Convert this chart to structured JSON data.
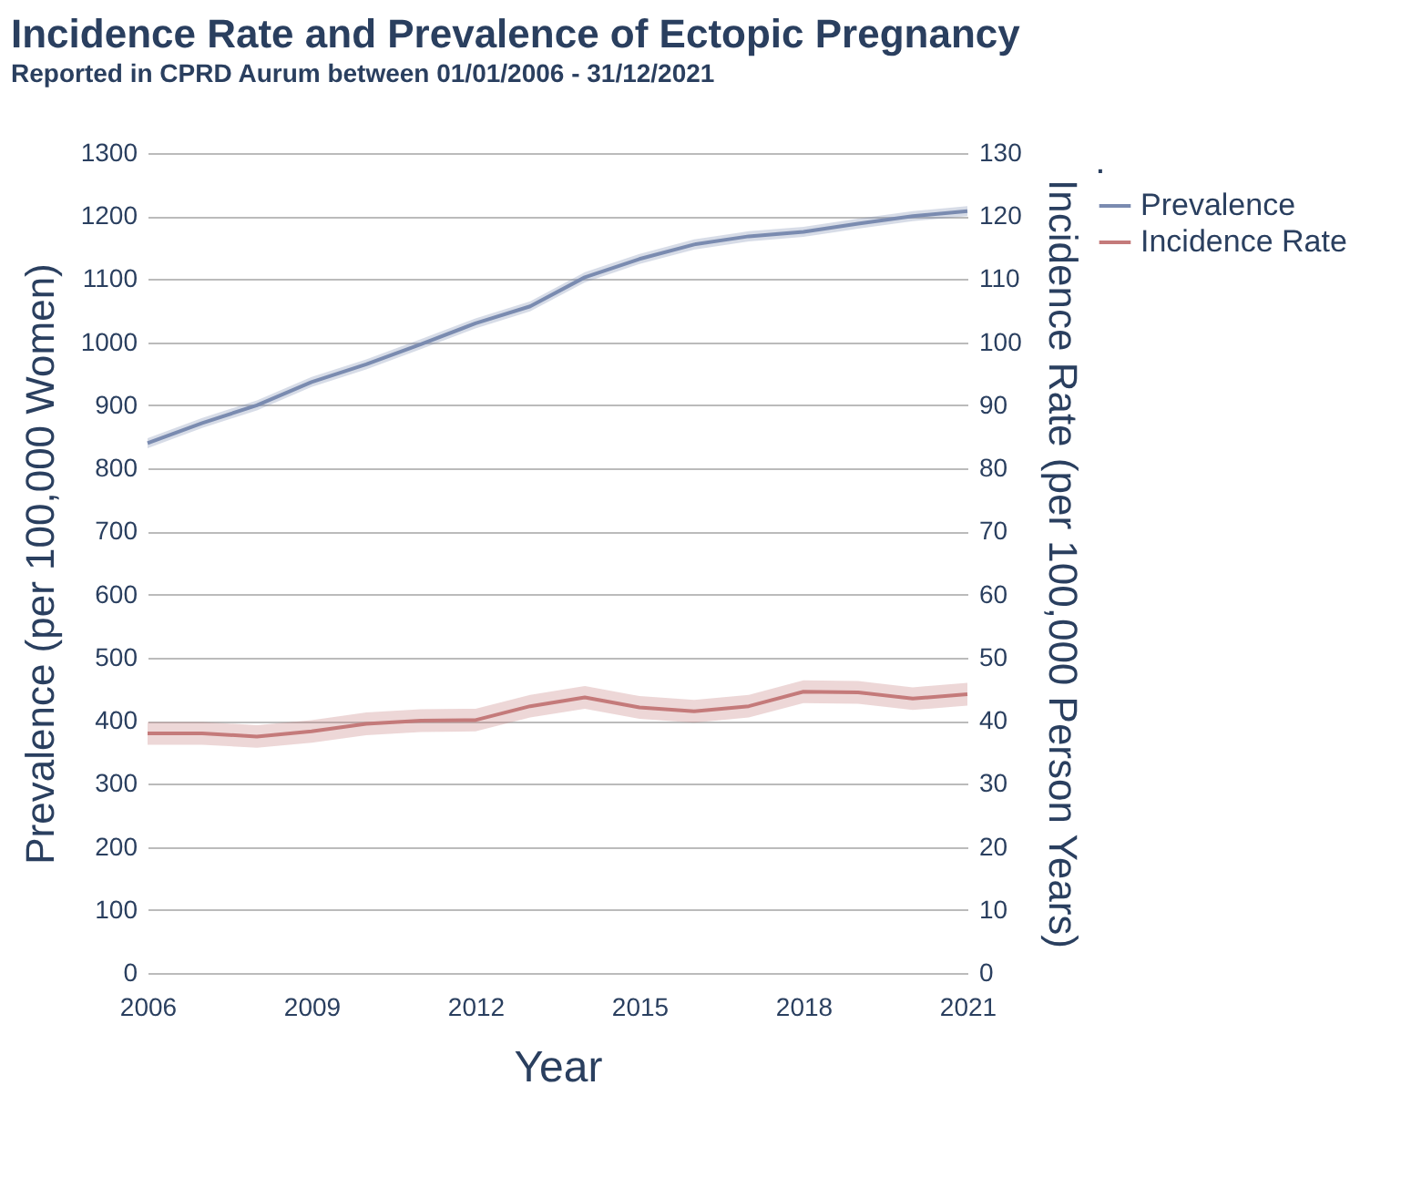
{
  "chart_data": {
    "type": "line",
    "title": "Incidence Rate and Prevalence of Ectopic Pregnancy",
    "subtitle": "Reported in CPRD Aurum between 01/01/2006 - 31/12/2021",
    "xlabel": "Year",
    "ylabel": "Prevalence (per 100,000 Women)",
    "y2label": "Incidence Rate (per 100,000 Person Years)",
    "legend_title": ".",
    "x": [
      2006,
      2007,
      2008,
      2009,
      2010,
      2011,
      2012,
      2013,
      2014,
      2015,
      2016,
      2017,
      2018,
      2019,
      2020,
      2021
    ],
    "series": [
      {
        "name": "Prevalence",
        "color": "#7a8bb0",
        "values": [
          840,
          872,
          900,
          937,
          965,
          997,
          1030,
          1057,
          1103,
          1132,
          1155,
          1168,
          1175,
          1188,
          1200,
          1208
        ],
        "lower": [
          832,
          864,
          892,
          929,
          957,
          989,
          1022,
          1049,
          1095,
          1124,
          1147,
          1160,
          1167,
          1180,
          1192,
          1200
        ],
        "upper": [
          848,
          880,
          908,
          945,
          973,
          1005,
          1038,
          1065,
          1111,
          1140,
          1163,
          1176,
          1183,
          1196,
          1208,
          1216
        ]
      },
      {
        "name": "Incidence Rate",
        "color": "#c47a7a",
        "axis": "y2",
        "values": [
          38,
          38,
          37.5,
          38.3,
          39.5,
          40,
          40.1,
          42.3,
          43.7,
          42.1,
          41.5,
          42.3,
          44.6,
          44.5,
          43.5,
          44.2
        ],
        "lower": [
          36.2,
          36.2,
          35.7,
          36.5,
          37.7,
          38.2,
          38.3,
          40.5,
          41.9,
          40.3,
          39.7,
          40.5,
          42.8,
          42.7,
          41.7,
          42.4
        ],
        "upper": [
          39.8,
          39.8,
          39.3,
          40.1,
          41.3,
          41.8,
          41.9,
          44.1,
          45.5,
          43.9,
          43.3,
          44.1,
          46.4,
          46.3,
          45.3,
          46
        ]
      }
    ],
    "xlim": [
      2006,
      2021
    ],
    "xticks": [
      2006,
      2009,
      2012,
      2015,
      2018,
      2021
    ],
    "ylim": [
      0,
      1300
    ],
    "yticks": [
      0,
      100,
      200,
      300,
      400,
      500,
      600,
      700,
      800,
      900,
      1000,
      1100,
      1200,
      1300
    ],
    "y2lim": [
      0,
      130
    ],
    "y2ticks": [
      0,
      10,
      20,
      30,
      40,
      50,
      60,
      70,
      80,
      90,
      100,
      110,
      120,
      130
    ],
    "grid": "y",
    "legend": "top right",
    "line_style": "solid",
    "marker": "none"
  }
}
